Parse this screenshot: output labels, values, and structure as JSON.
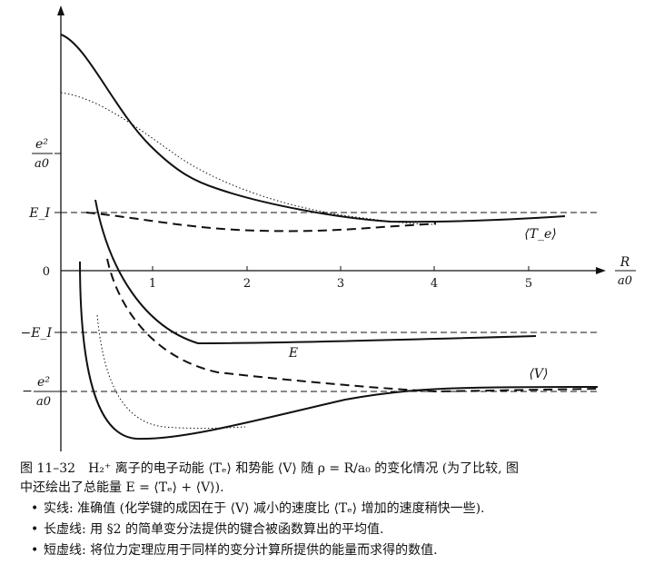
{
  "figure": {
    "x_axis_label": {
      "num": "R",
      "den": "a0"
    },
    "y_labels": {
      "e2_top": {
        "num": "e²",
        "den": "a0"
      },
      "EI": "E_I",
      "zero": "0",
      "neg_EI": "−E_I",
      "neg_e2": {
        "prefix": "−",
        "num": "e²",
        "den": "a0"
      }
    },
    "x_ticks": [
      "1",
      "2",
      "3",
      "4",
      "5"
    ],
    "curve_labels": {
      "Te": "⟨T_e⟩",
      "E": "E",
      "V": "⟨V⟩"
    }
  },
  "chart_data": {
    "type": "line",
    "x_label": "R/a0",
    "y_unit": "e²/a0",
    "reference_lines": [
      0.5,
      0,
      -0.5,
      -1
    ],
    "xlim": [
      -1,
      6
    ],
    "ylim": [
      -1.4,
      2.1
    ],
    "series": [
      {
        "quantity": "⟨T_e⟩",
        "style": "solid",
        "x": [
          0,
          0.5,
          1,
          1.5,
          2,
          2.5,
          3,
          3.5,
          4,
          4.5,
          5,
          5.4
        ],
        "y": [
          1.93,
          1.6,
          1.12,
          0.78,
          0.67,
          0.6,
          0.52,
          0.46,
          0.42,
          0.43,
          0.44,
          0.48
        ]
      },
      {
        "quantity": "⟨T_e⟩",
        "style": "dotted",
        "x": [
          0,
          0.5,
          1,
          1.5,
          2,
          2.5,
          3,
          3.5,
          4
        ],
        "y": [
          1.5,
          1.25,
          1.05,
          0.85,
          0.7,
          0.58,
          0.5,
          0.44,
          0.43
        ]
      },
      {
        "quantity": "⟨T_e⟩",
        "style": "dashed",
        "x": [
          0,
          0.5,
          1,
          1.5,
          2,
          2.5,
          3,
          3.5,
          4
        ],
        "y": [
          0.5,
          0.48,
          0.43,
          0.4,
          0.38,
          0.37,
          0.37,
          0.38,
          0.4
        ]
      },
      {
        "quantity": "E",
        "style": "solid",
        "x": [
          0.7,
          0.9,
          1.1,
          1.3,
          1.5,
          2,
          3,
          4,
          5
        ],
        "y": [
          0.4,
          -0.3,
          -0.6,
          -0.7,
          -0.7,
          -0.69,
          -0.68,
          -0.66,
          -0.63
        ]
      },
      {
        "quantity": "E",
        "style": "dashed",
        "x": [
          1,
          1.1,
          1.3,
          1.6,
          2,
          2.5,
          3,
          3.5,
          4,
          4.5,
          5
        ],
        "y": [
          0.1,
          -0.3,
          -0.6,
          -0.8,
          -0.9,
          -0.93,
          -0.96,
          -0.98,
          -1,
          -1,
          -1
        ]
      },
      {
        "quantity": "⟨V⟩",
        "style": "solid",
        "x": [
          0.2,
          0.25,
          0.35,
          0.5,
          0.7,
          1,
          1.5,
          2,
          2.5,
          3,
          3.5,
          4,
          4.5,
          5,
          5.4
        ],
        "y": [
          0.12,
          -0.7,
          -1.15,
          -1.33,
          -1.38,
          -1.36,
          -1.3,
          -1.22,
          -1.15,
          -1.08,
          -1.03,
          -1.0,
          -0.97,
          -0.96,
          -0.96
        ]
      },
      {
        "quantity": "⟨V⟩",
        "style": "dotted",
        "x": [
          0.4,
          0.55,
          0.7,
          0.9,
          1.1,
          1.3,
          1.7
        ],
        "y": [
          -0.35,
          -0.85,
          -1.15,
          -1.28,
          -1.3,
          -1.29,
          -1.28
        ]
      }
    ]
  },
  "caption": {
    "fig_no": "图 11–32",
    "line1": "H₂⁺ 离子的电子动能 ⟨Tₑ⟩ 和势能 ⟨V⟩ 随 ρ = R/a₀ 的变化情况 (为了比较, 图",
    "line2": "中还绘出了总能量 E = ⟨Tₑ⟩ + ⟨V⟩).",
    "bullet1": "实线: 准确值 (化学键的成因在于 ⟨V⟩ 减小的速度比 ⟨Tₑ⟩ 增加的速度稍快一些).",
    "bullet2": "长虚线: 用 §2 的简单变分法提供的键合被函数算出的平均值.",
    "bullet3": "短虚线: 将位力定理应用于同样的变分计算所提供的能量而求得的数值.",
    "bullet_mark": "•"
  }
}
